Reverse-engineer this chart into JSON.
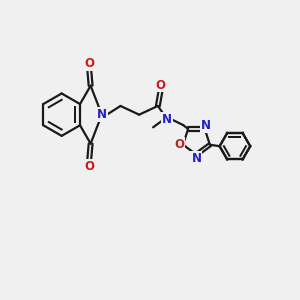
{
  "bg_color": "#f0f0f0",
  "bond_color": "#1a1a1a",
  "N_color": "#2020cc",
  "O_color": "#cc1a1a",
  "line_width": 1.6,
  "font_size": 8.5,
  "figsize": [
    3.0,
    3.0
  ],
  "dpi": 100,
  "xlim": [
    0,
    10
  ],
  "ylim": [
    0,
    10
  ]
}
